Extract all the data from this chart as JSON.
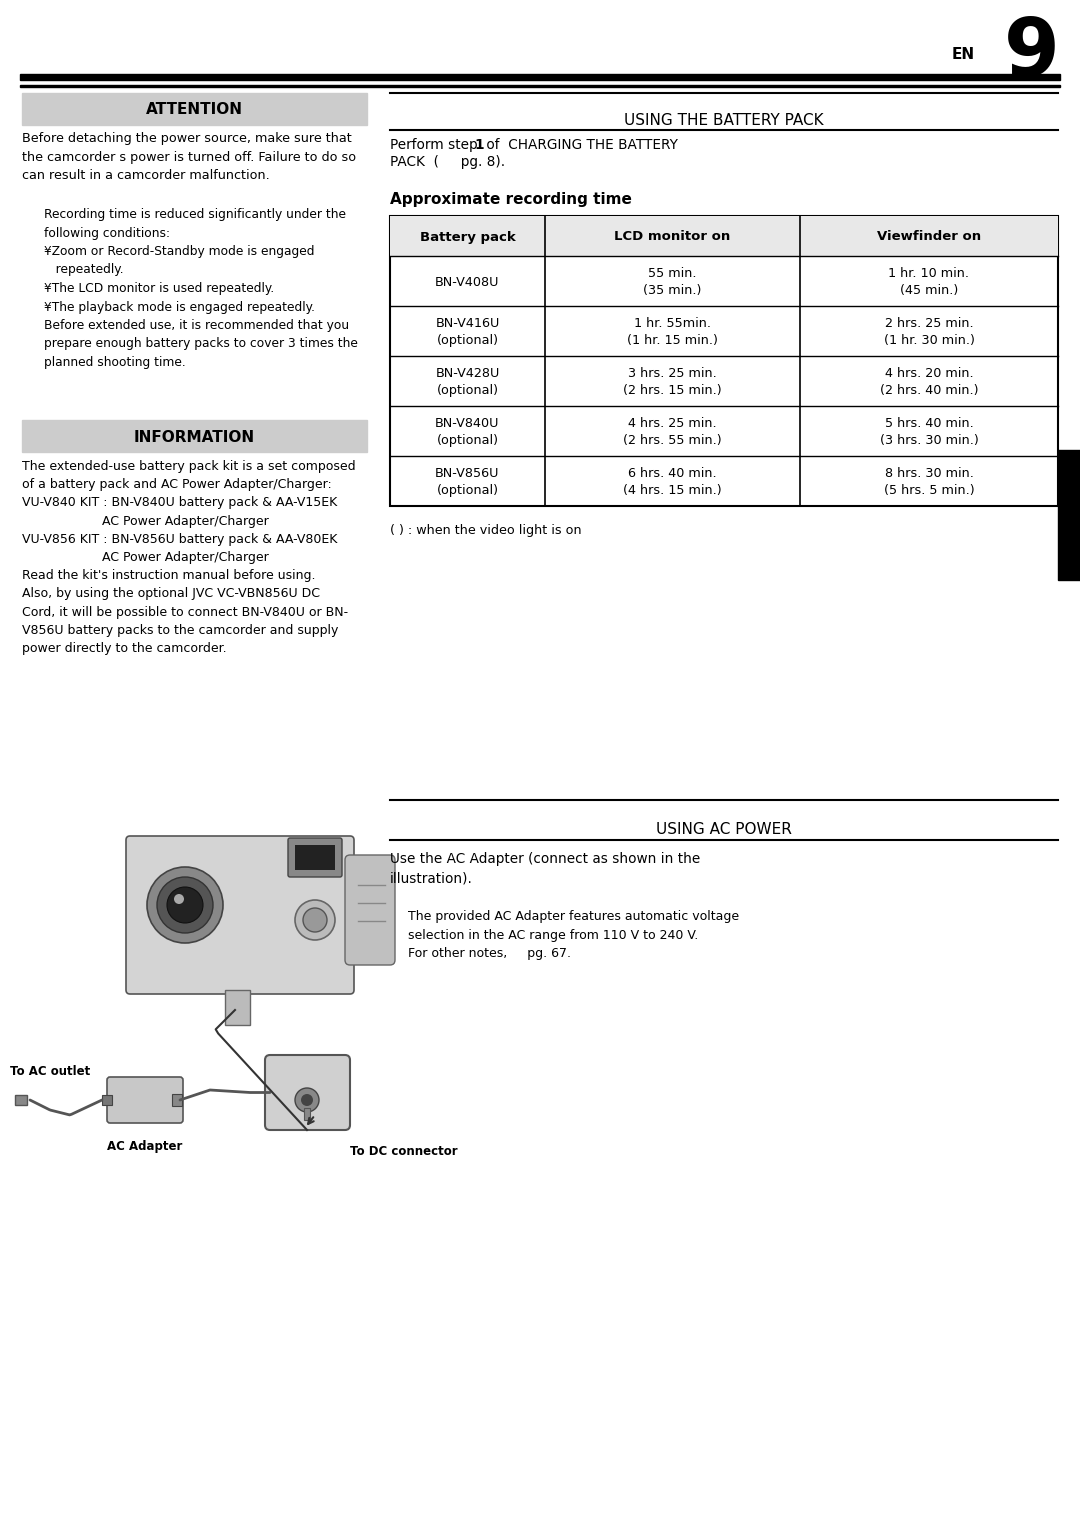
{
  "page_number": "9",
  "en_label": "EN",
  "attention_title": "ATTENTION",
  "attention_text": "Before detaching the power source, make sure that\nthe camcorder s power is turned off. Failure to do so\ncan result in a camcorder malfunction.",
  "attention_note": "Recording time is reduced significantly under the\nfollowing conditions:\n¥Zoom or Record-Standby mode is engaged\n   repeatedly.\n¥The LCD monitor is used repeatedly.\n¥The playback mode is engaged repeatedly.\nBefore extended use, it is recommended that you\nprepare enough battery packs to cover 3 times the\nplanned shooting time.",
  "information_title": "INFORMATION",
  "information_text_1": "The extended-use battery pack kit is a set composed\nof a battery pack and AC Power Adapter/Charger:\nVU-V840 KIT : BN-V840U battery pack & AA-V15EK\n                    AC Power Adapter/Charger\nVU-V856 KIT : BN-V856U battery pack & AA-V80EK\n                    AC Power Adapter/Charger\nRead the kit's instruction manual before using.\nAlso, by using the optional JVC VC-VBN856U DC\nCord, it will be possible to connect BN-V840U or BN-\nV856U battery packs to the camcorder and supply\npower directly to the camcorder.",
  "battery_section_title": "USING THE BATTERY PACK",
  "table_title": "Approximate recording time",
  "table_headers": [
    "Battery pack",
    "LCD monitor on",
    "Viewfinder on"
  ],
  "table_rows": [
    [
      "BN-V408U",
      "55 min.\n(35 min.)",
      "1 hr. 10 min.\n(45 min.)"
    ],
    [
      "BN-V416U\n(optional)",
      "1 hr. 55min.\n(1 hr. 15 min.)",
      "2 hrs. 25 min.\n(1 hr. 30 min.)"
    ],
    [
      "BN-V428U\n(optional)",
      "3 hrs. 25 min.\n(2 hrs. 15 min.)",
      "4 hrs. 20 min.\n(2 hrs. 40 min.)"
    ],
    [
      "BN-V840U\n(optional)",
      "4 hrs. 25 min.\n(2 hrs. 55 min.)",
      "5 hrs. 40 min.\n(3 hrs. 30 min.)"
    ],
    [
      "BN-V856U\n(optional)",
      "6 hrs. 40 min.\n(4 hrs. 15 min.)",
      "8 hrs. 30 min.\n(5 hrs. 5 min.)"
    ]
  ],
  "table_note": "( ) : when the video light is on",
  "ac_section_title": "USING AC POWER",
  "ac_text": "Use the AC Adapter (connect as shown in the\nillustration).",
  "ac_note": "The provided AC Adapter features automatic voltage\nselection in the AC range from 110 V to 240 V.\nFor other notes,     pg. 67.",
  "label_to_ac_outlet": "To AC outlet",
  "label_ac_adapter": "AC Adapter",
  "label_dc_connector": "To DC connector",
  "bg_color": "#ffffff",
  "gray_header_color": "#cccccc",
  "light_gray": "#e8e8e8",
  "black": "#000000",
  "cam_gray": "#aaaaaa",
  "cam_light": "#cccccc",
  "cam_dark": "#666666"
}
